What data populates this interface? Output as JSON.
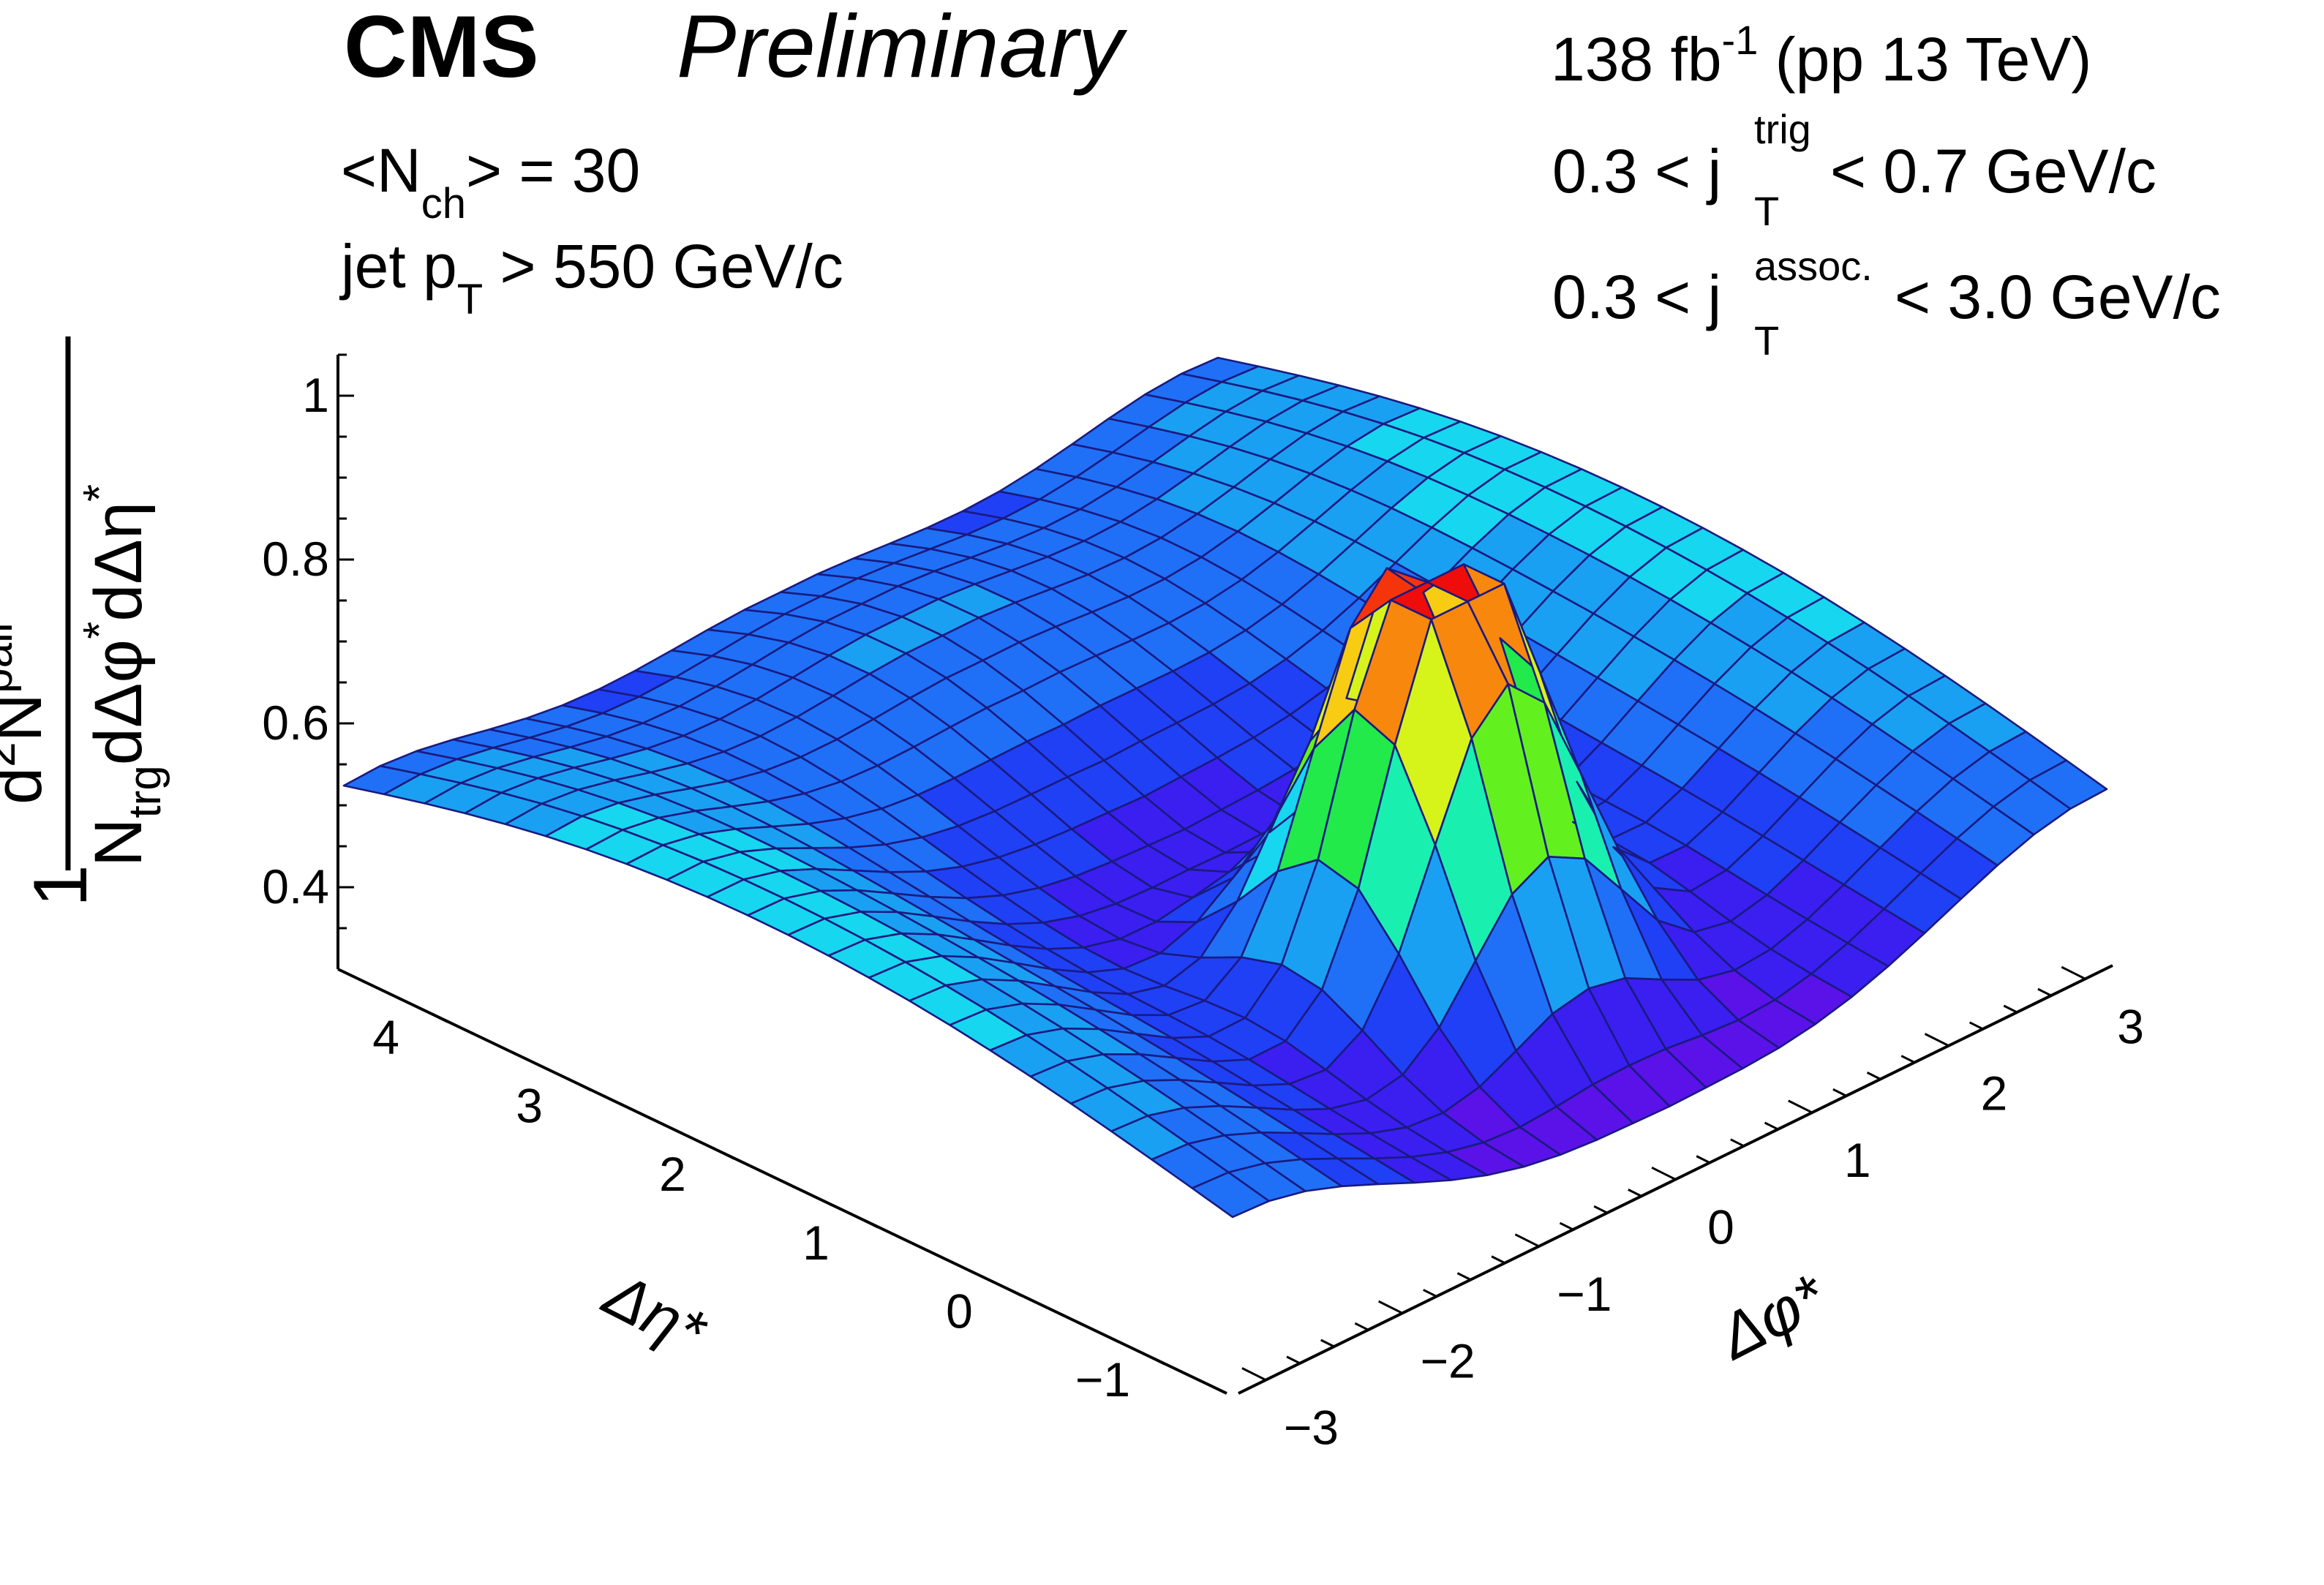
{
  "header": {
    "experiment": "CMS",
    "status": "Preliminary",
    "lumi_value": "138 fb",
    "lumi_exp": "-1",
    "lumi_suffix": " (pp 13 TeV)"
  },
  "annotations": {
    "nch_open": "<N",
    "nch_sub": "ch",
    "nch_close": "> = 30",
    "jet_pre": "jet p",
    "jet_sub": "T",
    "jet_post": " > 550 GeV/c",
    "trig_pre": "0.3 < j",
    "trig_sup": "trig",
    "trig_sub": "T",
    "trig_post": " < 0.7 GeV/c",
    "assoc_pre": "0.3 < j",
    "assoc_sup": "assoc.",
    "assoc_sub": "T",
    "assoc_post": " < 3.0 GeV/c"
  },
  "chart_data": {
    "type": "surface",
    "title": "",
    "zlabel_num_prefix": "1",
    "zlabel_top_d": "d",
    "zlabel_top_exp": "2",
    "zlabel_top_n": "N",
    "zlabel_top_sup": "pair",
    "zlabel_bot_n": "N",
    "zlabel_bot_sub": "trg",
    "zlabel_bot_rest": "dΔφ",
    "zlabel_bot_star1": "*",
    "zlabel_bot_rest2": "dΔη",
    "zlabel_bot_star2": "*",
    "xlabel": "Δφ*",
    "ylabel": "Δη*",
    "xlim": [
      -3.2,
      3.2
    ],
    "ylim": [
      -1.6,
      4.6
    ],
    "zlim": [
      0.3,
      1.05
    ],
    "x_ticks": [
      {
        "v": -3,
        "label": "−3"
      },
      {
        "v": -2,
        "label": "−2"
      },
      {
        "v": -1,
        "label": "−1"
      },
      {
        "v": 0,
        "label": "0"
      },
      {
        "v": 1,
        "label": "1"
      },
      {
        "v": 2,
        "label": "2"
      },
      {
        "v": 3,
        "label": "3"
      }
    ],
    "y_ticks": [
      {
        "v": -1,
        "label": "−1"
      },
      {
        "v": 0,
        "label": "0"
      },
      {
        "v": 1,
        "label": "1"
      },
      {
        "v": 2,
        "label": "2"
      },
      {
        "v": 3,
        "label": "3"
      },
      {
        "v": 4,
        "label": "4"
      }
    ],
    "z_ticks": [
      {
        "v": 0.4,
        "label": "0.4"
      },
      {
        "v": 0.6,
        "label": "0.6"
      },
      {
        "v": 0.8,
        "label": "0.8"
      },
      {
        "v": 1.0,
        "label": "1"
      }
    ],
    "surface_model": {
      "grid_x_bins": 24,
      "grid_y_bins": 22,
      "baseline": 0.36,
      "ridge_amp": 0.22,
      "ridge_center_phi": 3.14,
      "ridge_width_phi": 1.1,
      "ridge_eta_center": 1.5,
      "ridge_eta_width": 3.2,
      "near_ridge_amp": 0.16,
      "near_ridge_eta_center": 3.6,
      "near_ridge_eta_width": 1.3,
      "near_ridge_phi_width": 1.4,
      "peak_amp": 0.62,
      "peak_center_phi": 0.0,
      "peak_center_eta": 0.0,
      "peak_width": 0.55,
      "peak_cap": 0.87
    },
    "colors": {
      "mesh": "#1a1a80",
      "palette": [
        "#5a12e8",
        "#3a1ff0",
        "#2040f5",
        "#1f70f7",
        "#1aa0f2",
        "#17d6ef",
        "#19f0b0",
        "#22ea4a",
        "#62f11f",
        "#d6f41a",
        "#f7cc12",
        "#f8870e",
        "#f4350c",
        "#ee0d0a"
      ]
    }
  }
}
